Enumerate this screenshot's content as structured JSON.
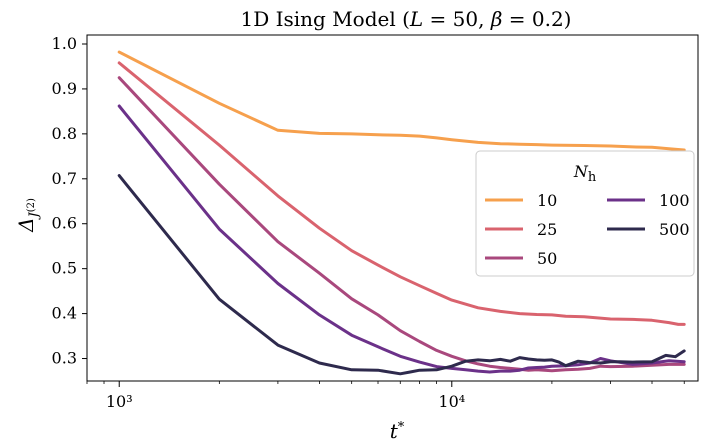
{
  "chart_data": {
    "type": "line",
    "title": "1D Ising Model (L = 50, β = 0.2)",
    "xlabel": "t*",
    "ylabel": "Δ_{J(2)}",
    "xscale": "log",
    "xlim": [
      800,
      55000
    ],
    "ylim": [
      0.25,
      1.02
    ],
    "x_ticks": [
      {
        "value": 1000,
        "label": "10³"
      },
      {
        "value": 10000,
        "label": "10⁴"
      }
    ],
    "y_ticks": [
      0.3,
      0.4,
      0.5,
      0.6,
      0.7,
      0.8,
      0.9,
      1.0
    ],
    "y_tick_labels": [
      "0.3",
      "0.4",
      "0.5",
      "0.6",
      "0.7",
      "0.8",
      "0.9",
      "1.0"
    ],
    "legend": {
      "title": "N_h",
      "placement": "center-right",
      "columns": 2
    },
    "grid": false,
    "series": [
      {
        "name": "10",
        "color": "#f6a04d",
        "x": [
          1000,
          2000,
          3000,
          4000,
          5000,
          6000,
          7000,
          8000,
          9000,
          10000,
          12000,
          14000,
          16000,
          18000,
          20000,
          25000,
          30000,
          35000,
          40000,
          45000,
          50000
        ],
        "y": [
          0.982,
          0.868,
          0.808,
          0.801,
          0.8,
          0.798,
          0.797,
          0.795,
          0.791,
          0.787,
          0.781,
          0.778,
          0.777,
          0.776,
          0.775,
          0.774,
          0.773,
          0.771,
          0.77,
          0.767,
          0.764
        ]
      },
      {
        "name": "25",
        "color": "#d9636e",
        "x": [
          1000,
          2000,
          3000,
          4000,
          5000,
          6000,
          7000,
          8000,
          9000,
          10000,
          12000,
          14000,
          16000,
          18000,
          20000,
          22000,
          25000,
          30000,
          35000,
          40000,
          45000,
          48000,
          50000
        ],
        "y": [
          0.958,
          0.775,
          0.662,
          0.59,
          0.54,
          0.508,
          0.482,
          0.462,
          0.445,
          0.43,
          0.413,
          0.405,
          0.4,
          0.398,
          0.397,
          0.394,
          0.393,
          0.388,
          0.387,
          0.385,
          0.38,
          0.376,
          0.376
        ]
      },
      {
        "name": "50",
        "color": "#a9487d",
        "x": [
          1000,
          2000,
          3000,
          4000,
          5000,
          6000,
          7000,
          8000,
          9000,
          10000,
          11000,
          12000,
          13000,
          14000,
          15000,
          16000,
          17000,
          18000,
          20000,
          22000,
          24000,
          26000,
          28000,
          30000,
          35000,
          40000,
          45000,
          50000
        ],
        "y": [
          0.925,
          0.688,
          0.56,
          0.49,
          0.433,
          0.397,
          0.362,
          0.338,
          0.318,
          0.305,
          0.295,
          0.288,
          0.283,
          0.28,
          0.278,
          0.276,
          0.274,
          0.275,
          0.273,
          0.275,
          0.276,
          0.278,
          0.283,
          0.282,
          0.283,
          0.285,
          0.287,
          0.287
        ]
      },
      {
        "name": "100",
        "color": "#6b3189",
        "x": [
          1000,
          2000,
          3000,
          4000,
          5000,
          6000,
          7000,
          8000,
          9000,
          10000,
          11000,
          12000,
          13000,
          14000,
          15000,
          16000,
          17000,
          18000,
          19000,
          20000,
          22000,
          24000,
          26000,
          28000,
          30000,
          35000,
          40000,
          45000,
          50000
        ],
        "y": [
          0.862,
          0.588,
          0.467,
          0.397,
          0.352,
          0.326,
          0.305,
          0.292,
          0.282,
          0.278,
          0.275,
          0.272,
          0.27,
          0.272,
          0.272,
          0.274,
          0.279,
          0.28,
          0.281,
          0.283,
          0.284,
          0.286,
          0.29,
          0.3,
          0.295,
          0.287,
          0.29,
          0.295,
          0.293
        ]
      },
      {
        "name": "500",
        "color": "#2e2a4d",
        "x": [
          1000,
          2000,
          3000,
          4000,
          5000,
          6000,
          7000,
          7500,
          8000,
          9000,
          10000,
          11000,
          12000,
          13000,
          14000,
          15000,
          16000,
          17000,
          18000,
          19000,
          20000,
          21000,
          22000,
          24000,
          26000,
          28000,
          30000,
          32000,
          35000,
          40000,
          44000,
          47000,
          50000
        ],
        "y": [
          0.707,
          0.432,
          0.33,
          0.29,
          0.275,
          0.274,
          0.266,
          0.27,
          0.274,
          0.275,
          0.283,
          0.294,
          0.297,
          0.295,
          0.298,
          0.294,
          0.302,
          0.299,
          0.297,
          0.296,
          0.297,
          0.292,
          0.284,
          0.294,
          0.291,
          0.29,
          0.293,
          0.293,
          0.292,
          0.293,
          0.307,
          0.304,
          0.317
        ]
      }
    ]
  }
}
